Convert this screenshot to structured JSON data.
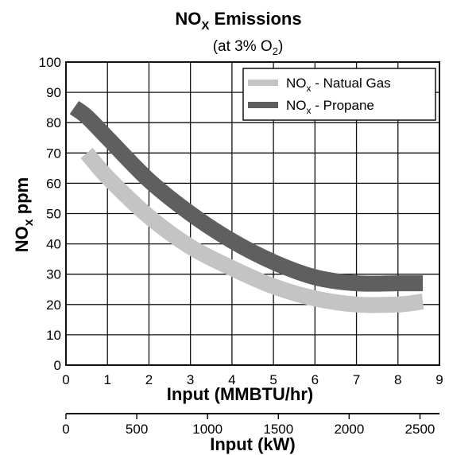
{
  "chart_data": {
    "type": "line",
    "title": {
      "main": "NO",
      "sub": "X",
      "tail": " Emissions"
    },
    "subtitle": {
      "main": "(at 3% O",
      "sub": "2",
      "tail": ")"
    },
    "xlabel": "Input (MMBTU/hr)",
    "x2label": "Input (kW)",
    "ylabel": {
      "main": "NO",
      "sub": "x",
      "tail": " ppm"
    },
    "xlim": [
      0,
      9
    ],
    "ylim": [
      0,
      100
    ],
    "x_ticks": [
      "0",
      "1",
      "2",
      "3",
      "4",
      "5",
      "6",
      "7",
      "8",
      "9"
    ],
    "y_ticks": [
      "0",
      "10",
      "20",
      "30",
      "40",
      "50",
      "60",
      "70",
      "80",
      "90",
      "100"
    ],
    "x2_ticks": [
      "0",
      "500",
      "1000",
      "1500",
      "2000",
      "2500"
    ],
    "grid": true,
    "legend_position": "top-right",
    "series": [
      {
        "name": {
          "main": "NO",
          "sub": "x",
          "tail": " - Natual Gas"
        },
        "color": "#c4c4c4",
        "x": [
          0.5,
          1,
          2,
          3,
          4,
          5,
          6,
          7,
          8,
          8.6
        ],
        "y": [
          70,
          62,
          49,
          39,
          32,
          26,
          22,
          20,
          20,
          21
        ]
      },
      {
        "name": {
          "main": "NO",
          "sub": "x",
          "tail": " - Propane"
        },
        "color": "#5f5f5f",
        "x": [
          0.2,
          0.5,
          1,
          2,
          3,
          4,
          5,
          6,
          7,
          8,
          8.6
        ],
        "y": [
          85,
          82,
          75,
          61,
          50,
          41,
          34,
          29,
          27,
          27,
          27
        ]
      }
    ]
  }
}
